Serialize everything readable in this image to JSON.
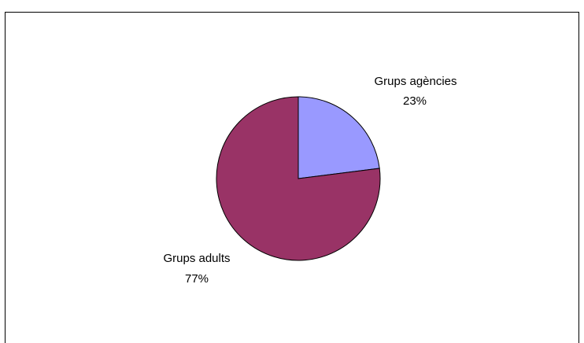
{
  "chart_data": {
    "type": "pie",
    "title": "",
    "slices": [
      {
        "label": "Grups agències",
        "percent_label": "23%",
        "value": 23,
        "color": "#9999ff"
      },
      {
        "label": "Grups adults",
        "percent_label": "77%",
        "value": 77,
        "color": "#993366"
      }
    ]
  }
}
